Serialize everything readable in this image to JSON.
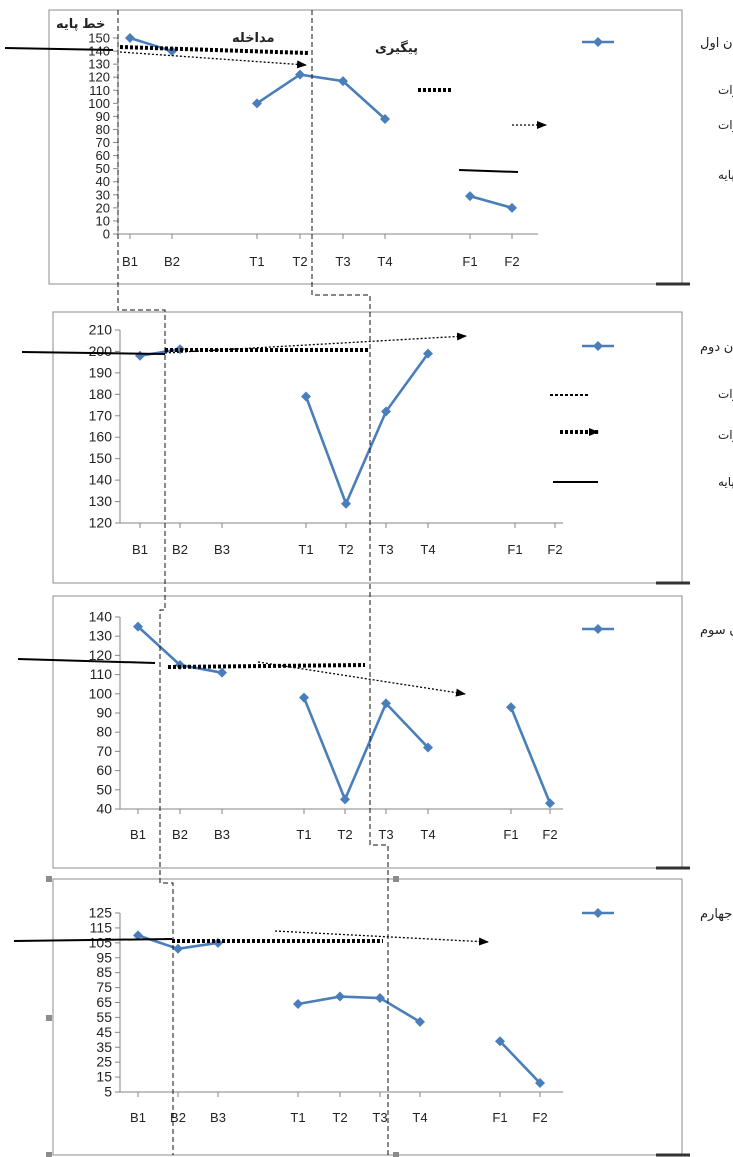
{
  "chart_data": [
    {
      "type": "line",
      "categories": [
        "B1",
        "B2",
        "T1",
        "T2",
        "T3",
        "T4",
        "F1",
        "F2"
      ],
      "series": [
        {
          "name": "نوجوان اول",
          "values": [
            150,
            140,
            100,
            122,
            117,
            88,
            29,
            20
          ]
        }
      ],
      "yticks": [
        0,
        10,
        20,
        30,
        40,
        50,
        60,
        70,
        80,
        90,
        100,
        110,
        120,
        130,
        140,
        150
      ],
      "ylim": [
        0,
        150
      ],
      "phase_labels": [
        "خط پایه",
        "مداخله",
        "پیگیری"
      ],
      "legend_extra": [
        "خط پیش بین سطح تغییرات",
        "خط پیش بین روند تغییرات",
        "میانگین خط پایه"
      ],
      "series_color": "#4a7ebb"
    },
    {
      "type": "line",
      "categories": [
        "B1",
        "B2",
        "B3",
        "T1",
        "T2",
        "T3",
        "T4",
        "F1",
        "F2"
      ],
      "series": [
        {
          "name": "نوجوان دوم",
          "values": [
            198,
            201,
            null,
            179,
            129,
            172,
            199,
            null,
            null
          ]
        }
      ],
      "yticks": [
        120,
        130,
        140,
        150,
        160,
        170,
        180,
        190,
        200,
        210
      ],
      "ylim": [
        120,
        210
      ],
      "legend_extra": [
        "پیش بین سطح تغییرات",
        "پیش بین روند تغییرات",
        "میانگین خط پایه"
      ],
      "series_color": "#4a7ebb"
    },
    {
      "type": "line",
      "categories": [
        "B1",
        "B2",
        "B3",
        "T1",
        "T2",
        "T3",
        "T4",
        "F1",
        "F2"
      ],
      "series": [
        {
          "name": "نوجوان سوم",
          "values": [
            135,
            115,
            111,
            98,
            45,
            95,
            72,
            93,
            43
          ]
        }
      ],
      "yticks": [
        40,
        50,
        60,
        70,
        80,
        90,
        100,
        110,
        120,
        130,
        140
      ],
      "ylim": [
        40,
        140
      ],
      "series_color": "#4a7ebb"
    },
    {
      "type": "line",
      "categories": [
        "B1",
        "B2",
        "B3",
        "T1",
        "T2",
        "T3",
        "T4",
        "F1",
        "F2"
      ],
      "series": [
        {
          "name": "نوجوان جهارم",
          "values": [
            110,
            101,
            105,
            64,
            69,
            68,
            52,
            39,
            11
          ]
        }
      ],
      "yticks": [
        5,
        15,
        25,
        35,
        45,
        55,
        65,
        75,
        85,
        95,
        105,
        115,
        125
      ],
      "ylim": [
        5,
        125
      ],
      "series_color": "#4a7ebb"
    }
  ]
}
